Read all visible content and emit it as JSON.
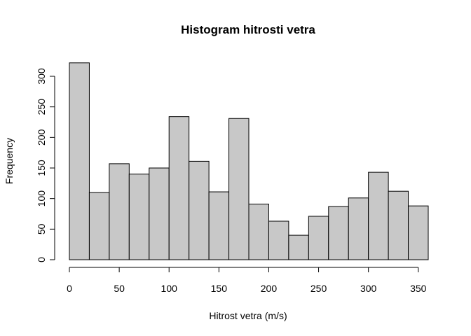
{
  "chart_data": {
    "type": "bar",
    "title": "Histogram hitrosti vetra",
    "xlabel": "Hitrost vetra (m/s)",
    "ylabel": "Frequency",
    "bins": [
      {
        "start": 0,
        "end": 20,
        "count": 322
      },
      {
        "start": 20,
        "end": 40,
        "count": 110
      },
      {
        "start": 40,
        "end": 60,
        "count": 157
      },
      {
        "start": 60,
        "end": 80,
        "count": 140
      },
      {
        "start": 80,
        "end": 100,
        "count": 150
      },
      {
        "start": 100,
        "end": 120,
        "count": 234
      },
      {
        "start": 120,
        "end": 140,
        "count": 161
      },
      {
        "start": 140,
        "end": 160,
        "count": 111
      },
      {
        "start": 160,
        "end": 180,
        "count": 231
      },
      {
        "start": 180,
        "end": 200,
        "count": 91
      },
      {
        "start": 200,
        "end": 220,
        "count": 63
      },
      {
        "start": 220,
        "end": 240,
        "count": 40
      },
      {
        "start": 240,
        "end": 260,
        "count": 71
      },
      {
        "start": 260,
        "end": 280,
        "count": 87
      },
      {
        "start": 280,
        "end": 300,
        "count": 101
      },
      {
        "start": 300,
        "end": 320,
        "count": 143
      },
      {
        "start": 320,
        "end": 340,
        "count": 112
      },
      {
        "start": 340,
        "end": 360,
        "count": 88
      }
    ],
    "xlim": [
      0,
      360
    ],
    "ylim": [
      0,
      322
    ],
    "xticks": [
      "0",
      "50",
      "100",
      "150",
      "200",
      "250",
      "300",
      "350"
    ],
    "yticks": [
      "0",
      "50",
      "100",
      "150",
      "200",
      "250",
      "300"
    ],
    "grid": false,
    "colors": {
      "bar_fill": "#c8c8c8",
      "bar_stroke": "#000000"
    }
  }
}
